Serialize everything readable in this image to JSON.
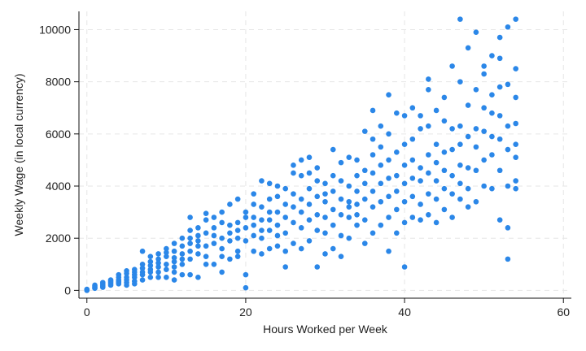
{
  "chart_data": {
    "type": "scatter",
    "title": "",
    "xlabel": "Hours Worked per Week",
    "ylabel": "Weekly Wage (in local currency)",
    "xlim": [
      -1,
      61
    ],
    "ylim": [
      -300,
      10700
    ],
    "x_ticks": [
      0,
      20,
      40,
      60
    ],
    "y_ticks": [
      0,
      2000,
      4000,
      6000,
      8000,
      10000
    ],
    "grid": true,
    "legend": "none",
    "marker_color": "#2b87e8",
    "series": [
      {
        "points": [
          [
            0,
            0
          ],
          [
            0,
            20
          ],
          [
            0,
            40
          ],
          [
            0,
            10
          ],
          [
            1,
            100
          ],
          [
            1,
            150
          ],
          [
            1,
            200
          ],
          [
            1,
            80
          ],
          [
            2,
            150
          ],
          [
            2,
            250
          ],
          [
            2,
            300
          ],
          [
            2,
            200
          ],
          [
            2,
            120
          ],
          [
            3,
            200
          ],
          [
            3,
            300
          ],
          [
            3,
            400
          ],
          [
            3,
            250
          ],
          [
            3,
            350
          ],
          [
            4,
            250
          ],
          [
            4,
            400
          ],
          [
            4,
            500
          ],
          [
            4,
            350
          ],
          [
            4,
            600
          ],
          [
            4,
            300
          ],
          [
            5,
            300
          ],
          [
            5,
            500
          ],
          [
            5,
            650
          ],
          [
            5,
            400
          ],
          [
            5,
            750
          ],
          [
            5,
            200
          ],
          [
            6,
            350
          ],
          [
            6,
            600
          ],
          [
            6,
            800
          ],
          [
            6,
            500
          ],
          [
            6,
            700
          ],
          [
            6,
            250
          ],
          [
            7,
            400
          ],
          [
            7,
            700
          ],
          [
            7,
            1000
          ],
          [
            7,
            1500
          ],
          [
            7,
            600
          ],
          [
            7,
            850
          ],
          [
            8,
            500
          ],
          [
            8,
            800
          ],
          [
            8,
            1100
          ],
          [
            8,
            700
          ],
          [
            8,
            950
          ],
          [
            8,
            1300
          ],
          [
            9,
            500
          ],
          [
            9,
            900
          ],
          [
            9,
            1200
          ],
          [
            9,
            1400
          ],
          [
            9,
            700
          ],
          [
            9,
            1050
          ],
          [
            10,
            500
          ],
          [
            10,
            1000
          ],
          [
            10,
            1300
          ],
          [
            10,
            1600
          ],
          [
            10,
            800
          ],
          [
            10,
            1450
          ],
          [
            11,
            400
          ],
          [
            11,
            1100
          ],
          [
            11,
            1500
          ],
          [
            11,
            1800
          ],
          [
            11,
            900
          ],
          [
            11,
            1250
          ],
          [
            11,
            700
          ],
          [
            12,
            600
          ],
          [
            12,
            1200
          ],
          [
            12,
            1700
          ],
          [
            12,
            2000
          ],
          [
            12,
            1000
          ],
          [
            12,
            1400
          ],
          [
            13,
            600
          ],
          [
            13,
            1500
          ],
          [
            13,
            2000
          ],
          [
            13,
            2800
          ],
          [
            13,
            1200
          ],
          [
            13,
            1800
          ],
          [
            13,
            2300
          ],
          [
            14,
            500
          ],
          [
            14,
            1400
          ],
          [
            14,
            1900
          ],
          [
            14,
            2400
          ],
          [
            14,
            1700
          ],
          [
            14,
            2100
          ],
          [
            15,
            1000
          ],
          [
            15,
            1700
          ],
          [
            15,
            2200
          ],
          [
            15,
            2700
          ],
          [
            15,
            2950
          ],
          [
            15,
            1300
          ],
          [
            16,
            1000
          ],
          [
            16,
            1800
          ],
          [
            16,
            2400
          ],
          [
            16,
            2800
          ],
          [
            16,
            2100
          ],
          [
            17,
            700
          ],
          [
            17,
            1600
          ],
          [
            17,
            2000
          ],
          [
            17,
            2600
          ],
          [
            17,
            3000
          ],
          [
            17,
            1300
          ],
          [
            18,
            1200
          ],
          [
            18,
            1900
          ],
          [
            18,
            2500
          ],
          [
            18,
            3300
          ],
          [
            18,
            2200
          ],
          [
            19,
            1300
          ],
          [
            19,
            2000
          ],
          [
            19,
            2600
          ],
          [
            19,
            3500
          ],
          [
            19,
            2300
          ],
          [
            19,
            1500
          ],
          [
            20,
            100
          ],
          [
            20,
            600
          ],
          [
            20,
            1900
          ],
          [
            20,
            2400
          ],
          [
            20,
            2800
          ],
          [
            20,
            3000
          ],
          [
            21,
            1500
          ],
          [
            21,
            2100
          ],
          [
            21,
            2800
          ],
          [
            21,
            3300
          ],
          [
            21,
            3700
          ],
          [
            21,
            2500
          ],
          [
            22,
            1400
          ],
          [
            22,
            2000
          ],
          [
            22,
            2700
          ],
          [
            22,
            3200
          ],
          [
            22,
            4200
          ],
          [
            22,
            2300
          ],
          [
            23,
            1600
          ],
          [
            23,
            2300
          ],
          [
            23,
            3000
          ],
          [
            23,
            3500
          ],
          [
            23,
            4100
          ],
          [
            23,
            2700
          ],
          [
            24,
            1700
          ],
          [
            24,
            2500
          ],
          [
            24,
            3000
          ],
          [
            24,
            3600
          ],
          [
            24,
            4000
          ],
          [
            24,
            2100
          ],
          [
            25,
            900
          ],
          [
            25,
            1500
          ],
          [
            25,
            2200
          ],
          [
            25,
            2800
          ],
          [
            25,
            3300
          ],
          [
            25,
            3900
          ],
          [
            26,
            1800
          ],
          [
            26,
            2600
          ],
          [
            26,
            3200
          ],
          [
            26,
            3700
          ],
          [
            26,
            4500
          ],
          [
            26,
            4800
          ],
          [
            27,
            1600
          ],
          [
            27,
            2400
          ],
          [
            27,
            3000
          ],
          [
            27,
            3500
          ],
          [
            27,
            4400
          ],
          [
            27,
            5000
          ],
          [
            28,
            1900
          ],
          [
            28,
            2700
          ],
          [
            28,
            3300
          ],
          [
            28,
            3900
          ],
          [
            28,
            4500
          ],
          [
            28,
            5100
          ],
          [
            29,
            900
          ],
          [
            29,
            2300
          ],
          [
            29,
            2900
          ],
          [
            29,
            3600
          ],
          [
            29,
            4200
          ],
          [
            29,
            4700
          ],
          [
            30,
            1400
          ],
          [
            30,
            2200
          ],
          [
            30,
            2800
          ],
          [
            30,
            3400
          ],
          [
            30,
            4100
          ],
          [
            30,
            3700
          ],
          [
            31,
            1600
          ],
          [
            31,
            2500
          ],
          [
            31,
            3100
          ],
          [
            31,
            3800
          ],
          [
            31,
            4400
          ],
          [
            31,
            5400
          ],
          [
            32,
            1300
          ],
          [
            32,
            2100
          ],
          [
            32,
            2900
          ],
          [
            32,
            3500
          ],
          [
            32,
            4200
          ],
          [
            32,
            4900
          ],
          [
            33,
            2000
          ],
          [
            33,
            2800
          ],
          [
            33,
            3400
          ],
          [
            33,
            4000
          ],
          [
            33,
            5100
          ],
          [
            33,
            3200
          ],
          [
            34,
            2500
          ],
          [
            34,
            3300
          ],
          [
            34,
            3800
          ],
          [
            34,
            4400
          ],
          [
            34,
            5000
          ],
          [
            34,
            2900
          ],
          [
            35,
            1800
          ],
          [
            35,
            2700
          ],
          [
            35,
            3500
          ],
          [
            35,
            4100
          ],
          [
            35,
            4600
          ],
          [
            35,
            6100
          ],
          [
            36,
            2200
          ],
          [
            36,
            3200
          ],
          [
            36,
            3800
          ],
          [
            36,
            4500
          ],
          [
            36,
            5200
          ],
          [
            36,
            5800
          ],
          [
            36,
            6900
          ],
          [
            37,
            2500
          ],
          [
            37,
            3400
          ],
          [
            37,
            4100
          ],
          [
            37,
            4800
          ],
          [
            37,
            5500
          ],
          [
            37,
            6300
          ],
          [
            38,
            1500
          ],
          [
            38,
            2800
          ],
          [
            38,
            3600
          ],
          [
            38,
            4300
          ],
          [
            38,
            5000
          ],
          [
            38,
            6000
          ],
          [
            38,
            7500
          ],
          [
            39,
            2200
          ],
          [
            39,
            3100
          ],
          [
            39,
            3800
          ],
          [
            39,
            4400
          ],
          [
            39,
            5300
          ],
          [
            39,
            6800
          ],
          [
            40,
            900
          ],
          [
            40,
            2600
          ],
          [
            40,
            3400
          ],
          [
            40,
            4100
          ],
          [
            40,
            4800
          ],
          [
            40,
            5600
          ],
          [
            40,
            6700
          ],
          [
            41,
            2800
          ],
          [
            41,
            3600
          ],
          [
            41,
            4300
          ],
          [
            41,
            5000
          ],
          [
            41,
            5800
          ],
          [
            41,
            7000
          ],
          [
            42,
            2700
          ],
          [
            42,
            3300
          ],
          [
            42,
            4200
          ],
          [
            42,
            4700
          ],
          [
            42,
            6200
          ],
          [
            42,
            6700
          ],
          [
            43,
            2900
          ],
          [
            43,
            3700
          ],
          [
            43,
            4500
          ],
          [
            43,
            5200
          ],
          [
            43,
            6300
          ],
          [
            43,
            7700
          ],
          [
            43,
            8100
          ],
          [
            44,
            2600
          ],
          [
            44,
            3500
          ],
          [
            44,
            4200
          ],
          [
            44,
            4900
          ],
          [
            44,
            5600
          ],
          [
            44,
            6900
          ],
          [
            45,
            3100
          ],
          [
            45,
            3900
          ],
          [
            45,
            4600
          ],
          [
            45,
            5300
          ],
          [
            45,
            6500
          ],
          [
            45,
            7400
          ],
          [
            46,
            2800
          ],
          [
            46,
            3700
          ],
          [
            46,
            4400
          ],
          [
            46,
            5400
          ],
          [
            46,
            6200
          ],
          [
            46,
            8600
          ],
          [
            47,
            3500
          ],
          [
            47,
            4100
          ],
          [
            47,
            4800
          ],
          [
            47,
            5600
          ],
          [
            47,
            6300
          ],
          [
            47,
            8000
          ],
          [
            47,
            10400
          ],
          [
            48,
            3200
          ],
          [
            48,
            3900
          ],
          [
            48,
            4700
          ],
          [
            48,
            5900
          ],
          [
            48,
            7100
          ],
          [
            48,
            9300
          ],
          [
            49,
            3400
          ],
          [
            49,
            4600
          ],
          [
            49,
            5500
          ],
          [
            49,
            6200
          ],
          [
            49,
            7700
          ],
          [
            49,
            9900
          ],
          [
            50,
            4000
          ],
          [
            50,
            5000
          ],
          [
            50,
            6100
          ],
          [
            50,
            7000
          ],
          [
            50,
            8300
          ],
          [
            50,
            8600
          ],
          [
            51,
            3900
          ],
          [
            51,
            5200
          ],
          [
            51,
            5900
          ],
          [
            51,
            6800
          ],
          [
            51,
            7500
          ],
          [
            51,
            9000
          ],
          [
            52,
            2700
          ],
          [
            52,
            4600
          ],
          [
            52,
            5800
          ],
          [
            52,
            6700
          ],
          [
            52,
            7800
          ],
          [
            52,
            8900
          ],
          [
            52,
            9700
          ],
          [
            53,
            1200
          ],
          [
            53,
            2400
          ],
          [
            53,
            4000
          ],
          [
            53,
            5400
          ],
          [
            53,
            6300
          ],
          [
            53,
            7900
          ],
          [
            53,
            10100
          ],
          [
            54,
            3900
          ],
          [
            54,
            4200
          ],
          [
            54,
            5100
          ],
          [
            54,
            5600
          ],
          [
            54,
            6400
          ],
          [
            54,
            7400
          ],
          [
            54,
            8500
          ],
          [
            54,
            10400
          ]
        ]
      }
    ]
  }
}
